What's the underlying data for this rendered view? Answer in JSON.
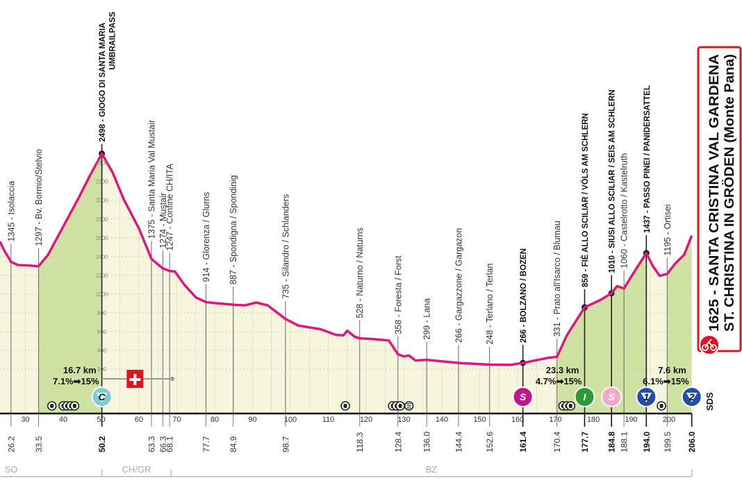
{
  "chart_data": {
    "type": "area",
    "xlabel": "",
    "ylabel": "",
    "xlim": [
      23.3,
      206.0
    ],
    "ylim": [
      -250,
      2600
    ],
    "grid": true,
    "colors": {
      "profile": "#e0157f",
      "fill": "#f6f5de",
      "climb_fill": "#cfe2a2",
      "grid": "#c9c9a8",
      "title_border": "#e0141e"
    },
    "profile": [
      [
        23.3,
        1560
      ],
      [
        24.5,
        1460
      ],
      [
        26.2,
        1345
      ],
      [
        28,
        1310
      ],
      [
        31,
        1305
      ],
      [
        33.5,
        1297
      ],
      [
        36,
        1420
      ],
      [
        40,
        1720
      ],
      [
        44,
        2020
      ],
      [
        47,
        2260
      ],
      [
        50.2,
        2498
      ],
      [
        53,
        2300
      ],
      [
        56,
        2010
      ],
      [
        60,
        1700
      ],
      [
        63.3,
        1375
      ],
      [
        66.3,
        1274
      ],
      [
        68.1,
        1247
      ],
      [
        69.5,
        1240
      ],
      [
        72,
        1100
      ],
      [
        75,
        965
      ],
      [
        77.7,
        914
      ],
      [
        80,
        905
      ],
      [
        84.9,
        887
      ],
      [
        88,
        880
      ],
      [
        91,
        910
      ],
      [
        94,
        880
      ],
      [
        98.7,
        735
      ],
      [
        102,
        665
      ],
      [
        108,
        625
      ],
      [
        112,
        565
      ],
      [
        114,
        560
      ],
      [
        115,
        610
      ],
      [
        117,
        545
      ],
      [
        118.3,
        528
      ],
      [
        122,
        520
      ],
      [
        126,
        505
      ],
      [
        128.4,
        358
      ],
      [
        130,
        335
      ],
      [
        131.3,
        345
      ],
      [
        133,
        292
      ],
      [
        136,
        299
      ],
      [
        144.4,
        266
      ],
      [
        152.6,
        248
      ],
      [
        158,
        245
      ],
      [
        161.4,
        266
      ],
      [
        168,
        320
      ],
      [
        170.4,
        331
      ],
      [
        173,
        560
      ],
      [
        177.7,
        859
      ],
      [
        182,
        940
      ],
      [
        184.8,
        1010
      ],
      [
        186.3,
        1085
      ],
      [
        188.1,
        1060
      ],
      [
        191,
        1250
      ],
      [
        194.0,
        1437
      ],
      [
        195.7,
        1300
      ],
      [
        197.5,
        1195
      ],
      [
        199.5,
        1215
      ],
      [
        201.5,
        1320
      ],
      [
        204,
        1420
      ],
      [
        206.0,
        1625
      ]
    ],
    "climb_segments": [
      [
        33.5,
        50.2
      ],
      [
        170.4,
        194.0
      ],
      [
        199.5,
        206.0
      ]
    ],
    "yticks": [
      200,
      400,
      600,
      800,
      1000,
      1200,
      1400,
      1600,
      1800,
      2000,
      2200,
      2400
    ],
    "xticks": [
      30,
      40,
      50,
      60,
      70,
      80,
      90,
      100,
      110,
      120,
      130,
      140,
      150,
      160,
      170,
      180,
      190,
      200
    ],
    "waypoints": [
      {
        "km": 26.2,
        "elev": 1345,
        "text": "1345 - Isolaccia",
        "bold": false
      },
      {
        "km": 33.5,
        "elev": 1297,
        "text": "1297 - Bv. Bormio/Stelvio",
        "bold": false
      },
      {
        "km": 50.2,
        "elev": 2498,
        "text": "2498 - GIOGO DI SANTA MARIA",
        "text2": "UMBRAILPASS",
        "bold": true
      },
      {
        "km": 63.3,
        "elev": 1375,
        "text": "1375 - Santa Maria Val Mustair",
        "bold": false
      },
      {
        "km": 66.3,
        "elev": 1274,
        "text": "1274 - Mustair",
        "bold": false
      },
      {
        "km": 68.1,
        "elev": 1247,
        "text": "1247 - Confine CH/ITA",
        "bold": false
      },
      {
        "km": 77.7,
        "elev": 914,
        "text": "914 - Glorenza / Glurns",
        "bold": false
      },
      {
        "km": 84.9,
        "elev": 887,
        "text": "887 - Spondigna / Spondinig",
        "bold": false
      },
      {
        "km": 98.7,
        "elev": 735,
        "text": "735 - Silandro / Schlanders",
        "bold": false
      },
      {
        "km": 118.3,
        "elev": 528,
        "text": "528 - Naturno / Naturns",
        "bold": false
      },
      {
        "km": 128.4,
        "elev": 358,
        "text": "358 - Foresta / Forst",
        "bold": false
      },
      {
        "km": 136.0,
        "elev": 299,
        "text": "299 - Lana",
        "bold": false
      },
      {
        "km": 144.4,
        "elev": 266,
        "text": "266 - Gargazzone / Gargazon",
        "bold": false
      },
      {
        "km": 152.6,
        "elev": 248,
        "text": "248 - Terlano / Terlan",
        "bold": false
      },
      {
        "km": 161.4,
        "elev": 266,
        "text": "266 - BOLZANO / BOZEN",
        "bold": true
      },
      {
        "km": 170.4,
        "elev": 331,
        "text": "331 - Prato all'Isarco / Blumau",
        "bold": false
      },
      {
        "km": 177.7,
        "elev": 859,
        "text": "859 - FIÈ ALLO SCILIAR / VÖLS AM SCHLERN",
        "bold": true
      },
      {
        "km": 184.8,
        "elev": 1010,
        "text": "1010 - SIUSI ALLO SCILIAR / SEIS AM SCHLERN",
        "bold": true
      },
      {
        "km": 188.1,
        "elev": 1060,
        "text": "1060 - Castelrotto / Kastelruth",
        "bold": false
      },
      {
        "km": 194.0,
        "elev": 1437,
        "text": "1437 - PASSO PINEI / PANIDERSATTEL",
        "bold": true
      },
      {
        "km": 199.5,
        "elev": 1195,
        "text": "1195 - Ortisei",
        "bold": false
      }
    ],
    "km_markers": [
      {
        "km": 26.2,
        "text": "26.2",
        "bold": false
      },
      {
        "km": 33.5,
        "text": "33.5",
        "bold": false
      },
      {
        "km": 50.2,
        "text": "50.2",
        "bold": true
      },
      {
        "km": 63.3,
        "text": "63.3",
        "bold": false
      },
      {
        "km": 66.3,
        "text": "66.3",
        "bold": false
      },
      {
        "km": 68.1,
        "text": "68.1",
        "bold": false
      },
      {
        "km": 77.7,
        "text": "77.7",
        "bold": false
      },
      {
        "km": 84.9,
        "text": "84.9",
        "bold": false
      },
      {
        "km": 98.7,
        "text": "98.7",
        "bold": false
      },
      {
        "km": 118.3,
        "text": "118.3",
        "bold": false
      },
      {
        "km": 128.4,
        "text": "128.4",
        "bold": false
      },
      {
        "km": 136.0,
        "text": "136.0",
        "bold": false
      },
      {
        "km": 144.4,
        "text": "144.4",
        "bold": false
      },
      {
        "km": 152.6,
        "text": "152.6",
        "bold": false
      },
      {
        "km": 161.4,
        "text": "161.4",
        "bold": true
      },
      {
        "km": 170.4,
        "text": "170.4",
        "bold": false
      },
      {
        "km": 177.7,
        "text": "177.7",
        "bold": true
      },
      {
        "km": 184.8,
        "text": "184.8",
        "bold": true
      },
      {
        "km": 188.1,
        "text": "188.1",
        "bold": false
      },
      {
        "km": 194.0,
        "text": "194.0",
        "bold": true
      },
      {
        "km": 199.5,
        "text": "199.5",
        "bold": false
      },
      {
        "km": 206.0,
        "text": "206.0",
        "bold": true
      }
    ],
    "regions": [
      {
        "label": "SO",
        "from": 23.3,
        "to": 50.2
      },
      {
        "label": "CH/GR",
        "from": 50.2,
        "to": 68.5
      },
      {
        "label": "BZ",
        "from": 68.5,
        "to": 206.0
      }
    ],
    "climb_info": [
      {
        "km": 50.2,
        "length": "16.7 km",
        "gradient": "7.1%➡15%"
      },
      {
        "km": 177.7,
        "length": "23.3 km",
        "gradient": "4.7%➡15%"
      },
      {
        "km": 206.0,
        "length": "7.6 km",
        "gradient": "6.1%➡15%"
      }
    ],
    "markers": [
      {
        "km": 50.2,
        "glyph": "C",
        "kind": "cima-coppi",
        "color": "#7ccfcf"
      },
      {
        "km": 161.4,
        "glyph": "S",
        "kind": "sprint",
        "color": "#c2168c"
      },
      {
        "km": 177.7,
        "glyph": "I",
        "kind": "intermediate-sprint",
        "color": "#2e9a37"
      },
      {
        "km": 184.8,
        "glyph": "S",
        "kind": "sprint",
        "color": "#f2a9c8"
      },
      {
        "km": 194.0,
        "glyph": "1",
        "kind": "gpm-cat-1",
        "color": "#1f4fa8"
      },
      {
        "km": 206.0,
        "glyph": "2",
        "kind": "gpm-cat-2",
        "color": "#1f4fa8"
      }
    ],
    "border": {
      "from_km": 50.2,
      "to_km": 68.1,
      "flag": "switzerland-flag"
    },
    "tunnels_km": [
      37,
      40,
      41,
      42,
      43,
      114.5,
      127,
      128,
      129,
      172,
      173,
      174,
      198
    ],
    "feed_zone_km": 131.3,
    "sds_label": "SDS",
    "finish": {
      "line1": "1625 - SANTA CRISTINA VAL GARDENA",
      "line2": "ST. CHRISTINA IN GRÖDEN (Monte Pana)",
      "icon": "bike-finish-icon"
    }
  }
}
